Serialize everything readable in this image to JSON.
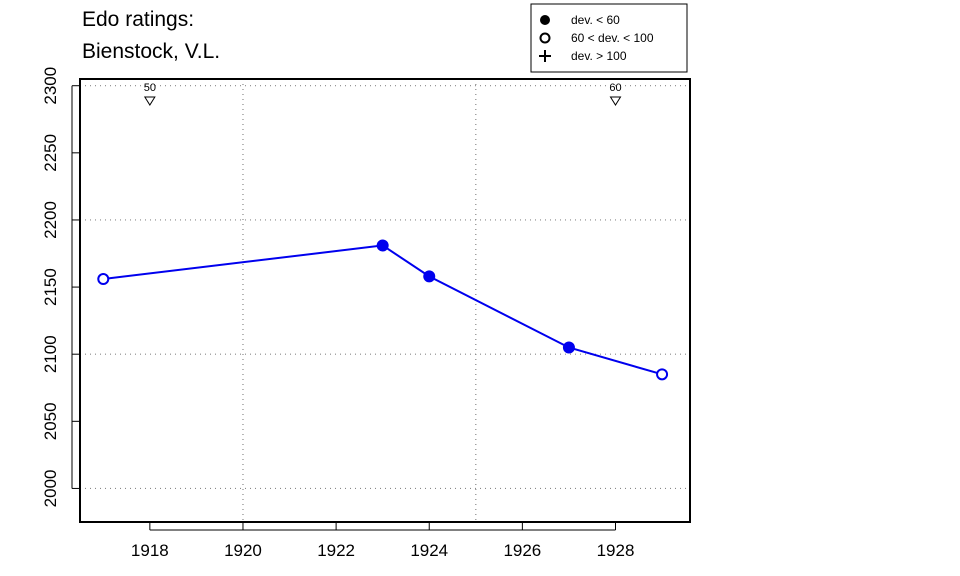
{
  "title_lines": [
    "Edo ratings:",
    "Bienstock, V.L."
  ],
  "legend": {
    "items": [
      {
        "symbol": "filled-circle",
        "label": "dev. < 60"
      },
      {
        "symbol": "open-circle",
        "label": "60 < dev. < 100"
      },
      {
        "symbol": "plus",
        "label": "dev. > 100"
      }
    ]
  },
  "colors": {
    "series": "#0000ee",
    "axis": "#000000",
    "grid": "#888888"
  },
  "chart_data": {
    "type": "line",
    "title": "Edo ratings: Bienstock, V.L.",
    "xlabel": "",
    "ylabel": "",
    "xlim": [
      1916.5,
      1929.6
    ],
    "ylim": [
      1975,
      2305
    ],
    "x_ticks": [
      1918,
      1920,
      1922,
      1924,
      1926,
      1928
    ],
    "y_ticks": [
      2000,
      2050,
      2100,
      2150,
      2200,
      2250,
      2300
    ],
    "x_tick_labels": [
      "1918",
      "1920",
      "1922",
      "1924",
      "1926",
      "1928"
    ],
    "y_tick_labels": [
      "2000",
      "2050",
      "2100",
      "2150",
      "2200",
      "2250",
      "2300"
    ],
    "v_grid": [
      1920,
      1925
    ],
    "h_grid": [
      2000,
      2100,
      2200,
      2300
    ],
    "grid": true,
    "legend_position": "top-right",
    "series": [
      {
        "points": [
          {
            "x": 1917,
            "y": 2156,
            "dev": "60 < dev. < 100"
          },
          {
            "x": 1923,
            "y": 2181,
            "dev": "dev. < 60"
          },
          {
            "x": 1924,
            "y": 2158,
            "dev": "dev. < 60"
          },
          {
            "x": 1927,
            "y": 2105,
            "dev": "dev. < 60"
          },
          {
            "x": 1929,
            "y": 2085,
            "dev": "60 < dev. < 100"
          }
        ]
      }
    ],
    "annotations": [
      {
        "x": 1918,
        "label": "50"
      },
      {
        "x": 1928,
        "label": "60"
      }
    ]
  }
}
